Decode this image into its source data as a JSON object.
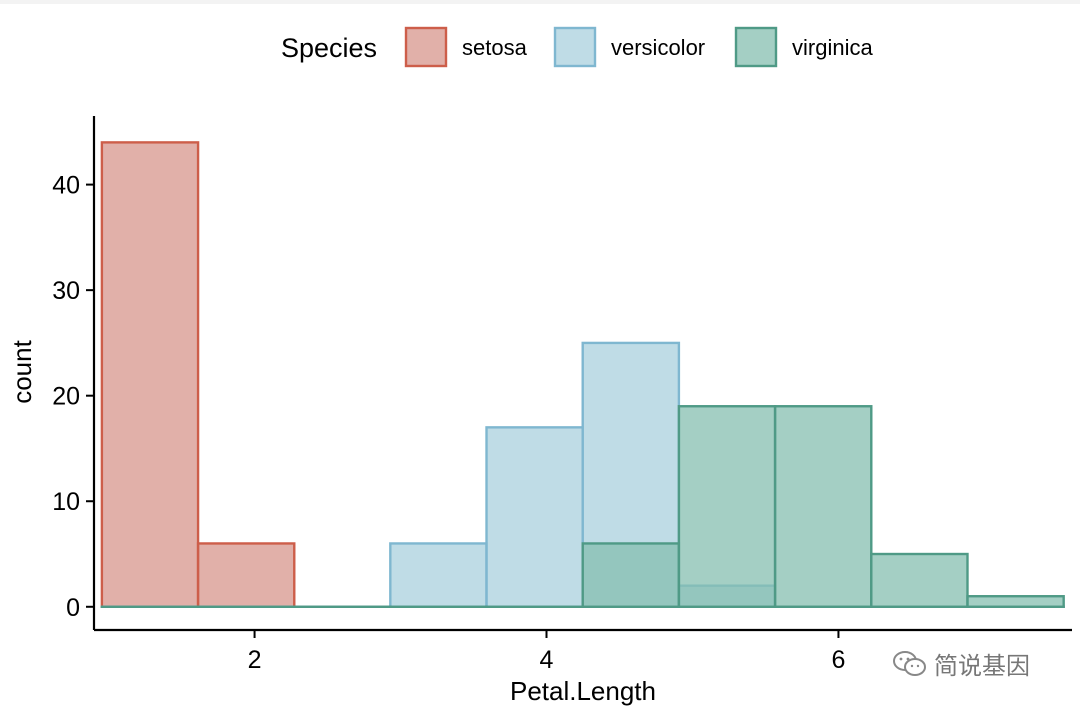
{
  "chart_data": {
    "type": "histogram",
    "title": "",
    "xlabel": "Petal.Length",
    "ylabel": "count",
    "xlim": [
      0.9,
      7.6
    ],
    "ylim": [
      -2.2,
      46.5
    ],
    "xticks": [
      2,
      4,
      6
    ],
    "yticks": [
      0,
      10,
      20,
      30,
      40
    ],
    "bin_edges": [
      0.954,
      1.613,
      2.272,
      2.93,
      3.589,
      4.248,
      4.907,
      5.566,
      6.225,
      6.884,
      7.543
    ],
    "legend": {
      "title": "Species",
      "position": "top"
    },
    "series": [
      {
        "name": "setosa",
        "counts": [
          44,
          6,
          0,
          0,
          0,
          0,
          0,
          0,
          0,
          0
        ],
        "fill": "#d7968c",
        "stroke": "#cd5e4a"
      },
      {
        "name": "versicolor",
        "counts": [
          0,
          0,
          0,
          6,
          17,
          25,
          2,
          0,
          0,
          0
        ],
        "fill": "#a9d0de",
        "stroke": "#7fb7d0"
      },
      {
        "name": "virginica",
        "counts": [
          0,
          0,
          0,
          0,
          0,
          6,
          19,
          19,
          5,
          1
        ],
        "fill": "#86bfb0",
        "stroke": "#4f9a86"
      }
    ],
    "grid": false
  },
  "watermark": {
    "text": "简说基因",
    "icon": "wechat-icon"
  }
}
